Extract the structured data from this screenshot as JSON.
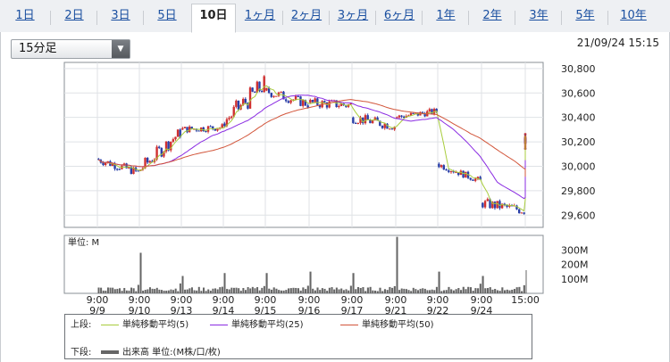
{
  "tabs": [
    {
      "label": "1日",
      "active": false
    },
    {
      "label": "2日",
      "active": false
    },
    {
      "label": "3日",
      "active": false
    },
    {
      "label": "5日",
      "active": false
    },
    {
      "label": "10日",
      "active": true
    },
    {
      "label": "1ヶ月",
      "active": false
    },
    {
      "label": "2ヶ月",
      "active": false
    },
    {
      "label": "3ヶ月",
      "active": false
    },
    {
      "label": "6ヶ月",
      "active": false
    },
    {
      "label": "1年",
      "active": false
    },
    {
      "label": "2年",
      "active": false
    },
    {
      "label": "3年",
      "active": false
    },
    {
      "label": "5年",
      "active": false
    },
    {
      "label": "10年",
      "active": false
    }
  ],
  "interval": {
    "selected": "15分足"
  },
  "timestamp": "21/09/24 15:15",
  "legend": {
    "upper_label": "上段:",
    "lower_label": "下段:",
    "ma5": "単純移動平均(5)",
    "ma25": "単純移動平均(25)",
    "ma50": "単純移動平均(50)",
    "volume": "出来高 単位:(M株/口/枚)"
  },
  "colors": {
    "up": "#d03030",
    "down": "#2a3fa8",
    "ma5": "#a8cc3c",
    "ma25": "#8a2be2",
    "ma50": "#d2553a",
    "volume": "#666666"
  },
  "chart_data": [
    {
      "type": "candlestick",
      "interval": "15min",
      "ylim": [
        29500,
        30850
      ],
      "yticks": [
        "30,800",
        "30,600",
        "30,400",
        "30,200",
        "30,000",
        "29,800",
        "29,600"
      ],
      "ytick_values": [
        30800,
        30600,
        30400,
        30200,
        30000,
        29800,
        29600
      ],
      "grid": true,
      "sessions": [
        {
          "date": "9/9",
          "open": 30060,
          "high": 30100,
          "low": 29890,
          "close": 29950
        },
        {
          "date": "9/10",
          "open": 29960,
          "high": 30300,
          "low": 29950,
          "close": 30280
        },
        {
          "date": "9/13",
          "open": 30300,
          "high": 30350,
          "low": 30180,
          "close": 30320
        },
        {
          "date": "9/14",
          "open": 30350,
          "high": 30800,
          "low": 30330,
          "close": 30670
        },
        {
          "date": "9/15",
          "open": 30620,
          "high": 30640,
          "low": 30400,
          "close": 30510
        },
        {
          "date": "9/16",
          "open": 30520,
          "high": 30620,
          "low": 30380,
          "close": 30500
        },
        {
          "date": "9/17",
          "open": 30400,
          "high": 30440,
          "low": 30200,
          "close": 30330
        },
        {
          "date": "9/21",
          "open": 30400,
          "high": 30520,
          "low": 30360,
          "close": 30450
        },
        {
          "date": "9/22",
          "open": 30020,
          "high": 30040,
          "low": 29880,
          "close": 29880
        },
        {
          "date": "9/24",
          "open": 29700,
          "high": 29830,
          "low": 29580,
          "close": 29640
        },
        {
          "date": "9/24 pm",
          "open": 30150,
          "high": 30270,
          "low": 30100,
          "close": 30250
        }
      ],
      "moving_averages": [
        {
          "name": "単純移動平均(5)",
          "color": "#a8cc3c",
          "period": 5
        },
        {
          "name": "単純移動平均(25)",
          "color": "#8a2be2",
          "period": 25
        },
        {
          "name": "単純移動平均(50)",
          "color": "#d2553a",
          "period": 50
        }
      ]
    },
    {
      "type": "bar",
      "ylabel": "単位: M",
      "ylim": [
        0,
        400
      ],
      "yticks": [
        "300M",
        "200M",
        "100M"
      ],
      "ytick_values": [
        300,
        200,
        100
      ],
      "x_ticks": [
        {
          "time": "9:00",
          "date": "9/9"
        },
        {
          "time": "9:00",
          "date": "9/10"
        },
        {
          "time": "9:00",
          "date": "9/13"
        },
        {
          "time": "9:00",
          "date": "9/14"
        },
        {
          "time": "9:00",
          "date": "9/15"
        },
        {
          "time": "9:00",
          "date": "9/16"
        },
        {
          "time": "9:00",
          "date": "9/17"
        },
        {
          "time": "9:00",
          "date": "9/21"
        },
        {
          "time": "9:00",
          "date": "9/22"
        },
        {
          "time": "9:00",
          "date": "9/24"
        },
        {
          "time": "15:00",
          "date": ""
        }
      ],
      "session_volume_peaks": [
        40,
        280,
        120,
        140,
        140,
        150,
        140,
        390,
        150,
        120,
        160
      ]
    }
  ]
}
